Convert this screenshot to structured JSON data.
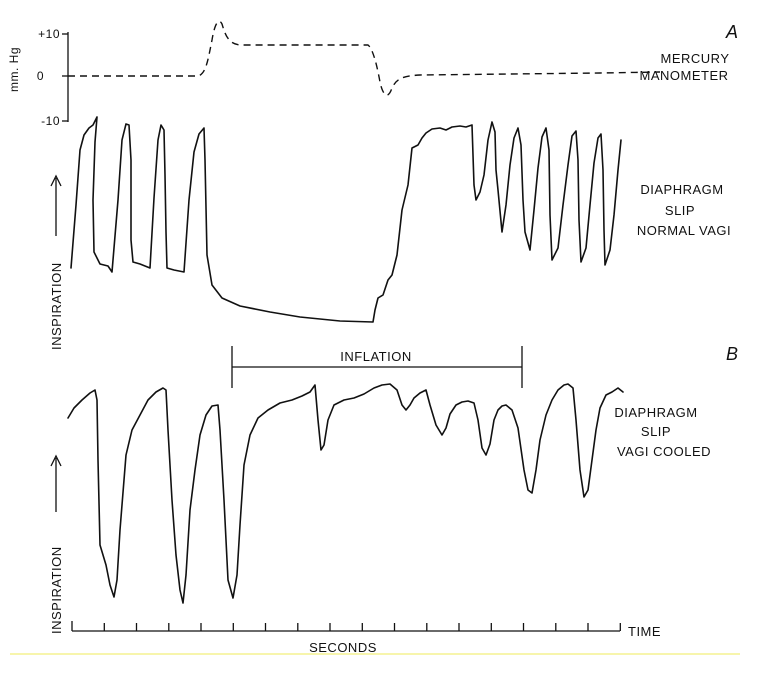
{
  "panel_a": {
    "letter": "A",
    "y_unit": "mm. Hg",
    "y_ticks": [
      "+10",
      "0",
      "-10"
    ],
    "manometer_label_line1": "MERCURY",
    "manometer_label_line2": "MANOMETER",
    "trace_label_line1": "DIAPHRAGM",
    "trace_label_line2": "SLIP",
    "trace_label_line3": "NORMAL VAGI",
    "axis_label": "INSPIRATION"
  },
  "panel_b": {
    "letter": "B",
    "inflation_label": "INFLATION",
    "trace_label_line1": "DIAPHRAGM",
    "trace_label_line2": "SLIP",
    "trace_label_line3": "VAGI COOLED",
    "axis_label": "INSPIRATION"
  },
  "time_axis": {
    "label": "TIME",
    "units_label": "SECONDS"
  },
  "colors": {
    "ink": "#111111",
    "background": "#ffffff",
    "baseline_highlight": "#f2ef7a"
  }
}
